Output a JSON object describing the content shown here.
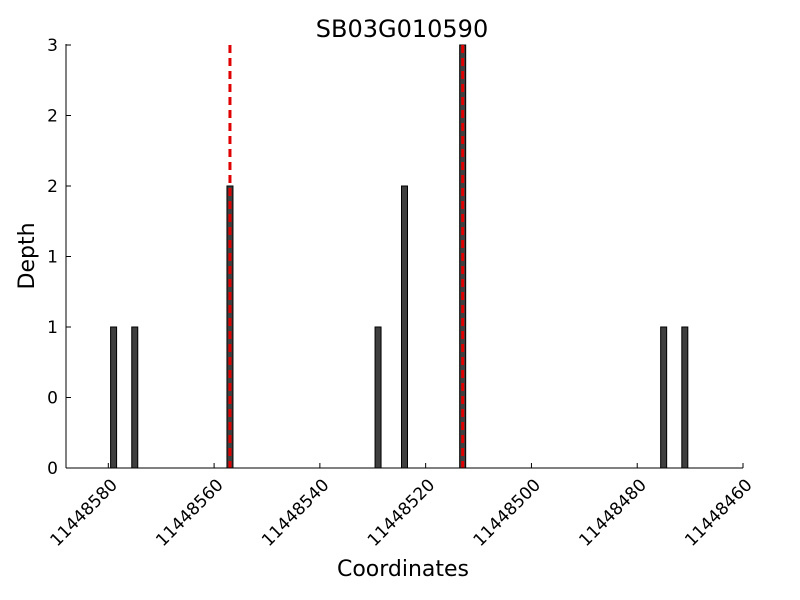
{
  "chart_data": {
    "type": "bar",
    "title": "SB03G010590",
    "xlabel": "Coordinates",
    "ylabel": "Depth",
    "x_reversed": true,
    "xlim": [
      11448460,
      11448588
    ],
    "ylim": [
      0,
      3
    ],
    "x_ticks": [
      11448580,
      11448560,
      11448540,
      11448520,
      11448500,
      11448480,
      11448460
    ],
    "x_tick_labels": [
      "11448580",
      "11448560",
      "11448540",
      "11448520",
      "11448500",
      "11448480",
      "11448460"
    ],
    "y_ticks": [
      0,
      0.5,
      1,
      1.5,
      2,
      2.5,
      3
    ],
    "y_tick_labels": [
      "0",
      "0",
      "1",
      "1",
      "2",
      "2",
      "3"
    ],
    "bar_color": "#3f3f3f",
    "bar_edge_color": "#000000",
    "x": [
      11448579,
      11448575,
      11448557,
      11448529,
      11448524,
      11448513,
      11448475,
      11448471
    ],
    "values": [
      1,
      1,
      2,
      1,
      2,
      3,
      1,
      1
    ],
    "reference_lines": {
      "color": "#e00000",
      "style": "dashed",
      "x": [
        11448557,
        11448513
      ]
    },
    "grid": false,
    "legend": "none"
  }
}
